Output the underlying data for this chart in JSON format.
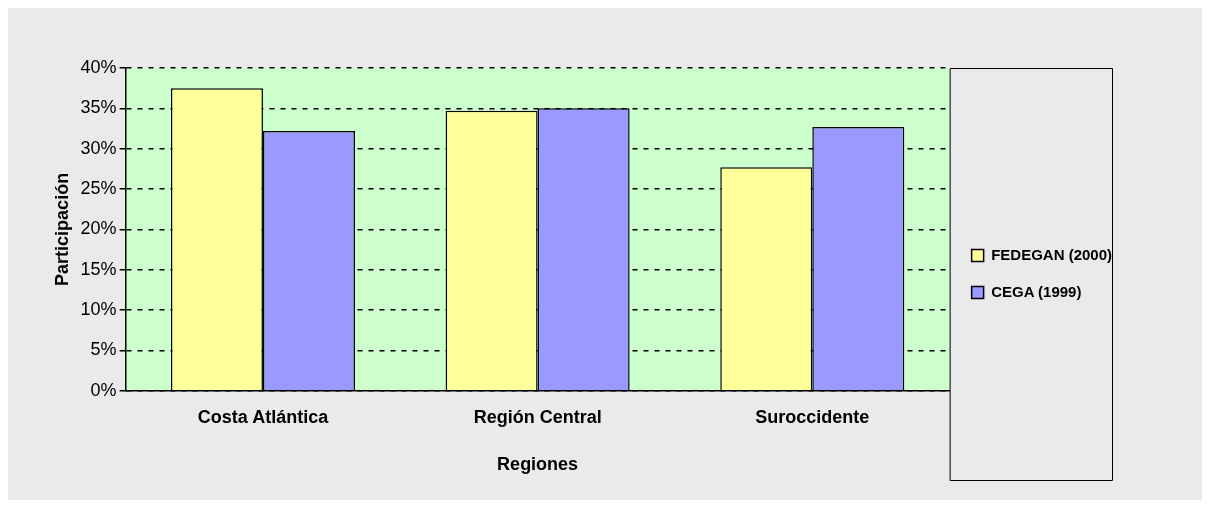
{
  "chart_data": {
    "type": "bar",
    "xlabel": "Regiones",
    "ylabel": "Participación",
    "categories": [
      "Costa Atlántica",
      "Región Central",
      "Suroccidente"
    ],
    "series": [
      {
        "name": "FEDEGAN (2000)",
        "color": "#ffff99",
        "values": [
          37.5,
          34.7,
          27.7
        ]
      },
      {
        "name": "CEGA (1999)",
        "color": "#9999ff",
        "values": [
          32.2,
          35.0,
          32.7
        ]
      }
    ],
    "ylim": [
      0,
      40
    ],
    "yticks": [
      {
        "value": 0,
        "label": "0%"
      },
      {
        "value": 5,
        "label": "5%"
      },
      {
        "value": 10,
        "label": "10%"
      },
      {
        "value": 15,
        "label": "15%"
      },
      {
        "value": 20,
        "label": "20%"
      },
      {
        "value": 25,
        "label": "25%"
      },
      {
        "value": 30,
        "label": "30%"
      },
      {
        "value": 35,
        "label": "35%"
      },
      {
        "value": 40,
        "label": "40%"
      }
    ],
    "grid": "y",
    "legend": "right"
  }
}
